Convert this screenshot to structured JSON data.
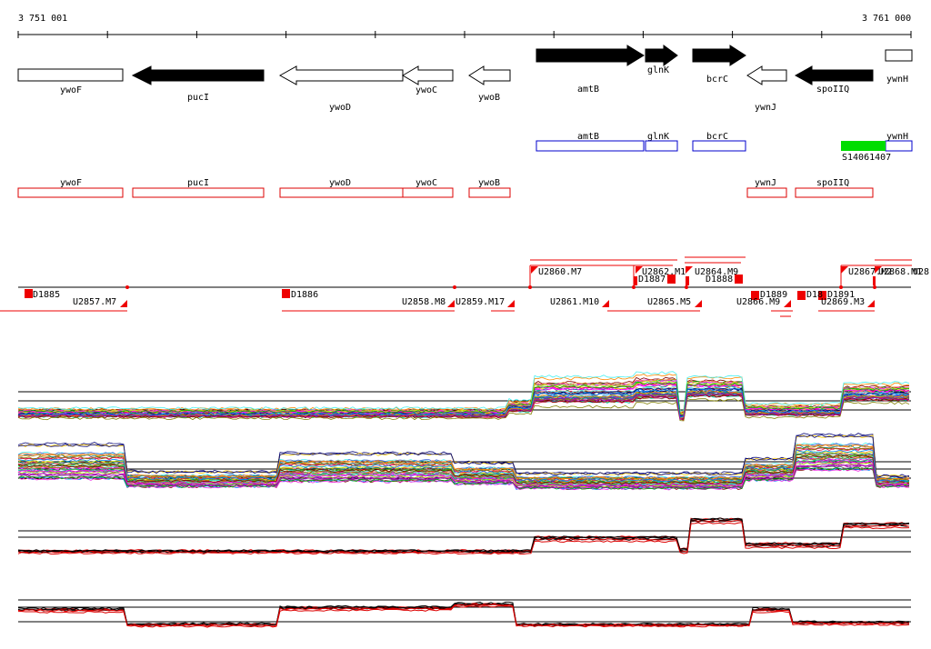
{
  "ruler": {
    "start_label": "3 751 001",
    "end_label": "3 761 000"
  },
  "colors": {
    "black": "#000000",
    "blue": "#0000cc",
    "red": "#dd0000",
    "green": "#00dd00",
    "promoter_red": "#ee0000"
  },
  "genes": [
    {
      "name": "ywoF",
      "dir": "right",
      "filled": false
    },
    {
      "name": "pucI",
      "dir": "left",
      "filled": true
    },
    {
      "name": "ywoD",
      "dir": "left",
      "filled": false
    },
    {
      "name": "ywoC",
      "dir": "left",
      "filled": false
    },
    {
      "name": "ywoB",
      "dir": "left",
      "filled": false
    },
    {
      "name": "amtB",
      "dir": "right",
      "filled": true
    },
    {
      "name": "glnK",
      "dir": "right",
      "filled": true
    },
    {
      "name": "bcrC",
      "dir": "right",
      "filled": true
    },
    {
      "name": "ywnJ",
      "dir": "left",
      "filled": false
    },
    {
      "name": "spoIIQ",
      "dir": "left",
      "filled": true
    },
    {
      "name": "ywnH",
      "dir": "right",
      "filled": false
    }
  ],
  "blue_track": [
    {
      "name": "amtB"
    },
    {
      "name": "glnK"
    },
    {
      "name": "bcrC"
    },
    {
      "name": "ywnH"
    }
  ],
  "green_feature": {
    "name": "S14061407"
  },
  "red_track": [
    {
      "name": "ywoF"
    },
    {
      "name": "pucI"
    },
    {
      "name": "ywoD"
    },
    {
      "name": "ywoC"
    },
    {
      "name": "ywoB"
    },
    {
      "name": "ywnJ"
    },
    {
      "name": "spoIIQ"
    }
  ],
  "segments_top": [
    {
      "name": "U2860.M7"
    },
    {
      "name": "U2862.M1"
    },
    {
      "name": "D1887"
    },
    {
      "name": "U2864.M9"
    },
    {
      "name": "D1888"
    },
    {
      "name": "U2867.M2"
    },
    {
      "name": "U2868.M1"
    },
    {
      "name": "U28"
    }
  ],
  "segments_bottom": [
    {
      "name": "D1885"
    },
    {
      "name": "U2857.M7"
    },
    {
      "name": "D1886"
    },
    {
      "name": "U2858.M8"
    },
    {
      "name": "U2859.M17"
    },
    {
      "name": "U2861.M10"
    },
    {
      "name": "U2865.M5"
    },
    {
      "name": "U2866.M9"
    },
    {
      "name": "D1889"
    },
    {
      "name": "D18"
    },
    {
      "name": "D1891"
    },
    {
      "name": "U2869.M3"
    }
  ]
}
